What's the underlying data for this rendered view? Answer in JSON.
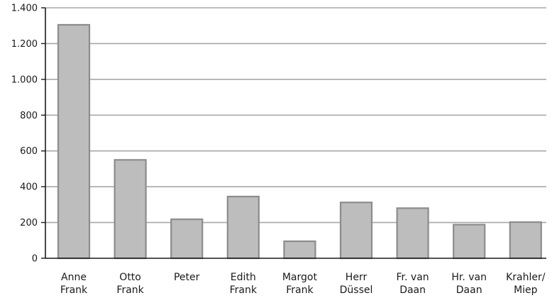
{
  "chart_data": {
    "type": "bar",
    "categories": [
      [
        "Anne",
        "Frank"
      ],
      [
        "Otto",
        "Frank"
      ],
      [
        "Peter"
      ],
      [
        "Edith",
        "Frank"
      ],
      [
        "Margot",
        "Frank"
      ],
      [
        "Herr",
        "Düssel"
      ],
      [
        "Fr. van",
        "Daan"
      ],
      [
        "Hr. van",
        "Daan"
      ],
      [
        "Krahler/",
        "Miep"
      ]
    ],
    "values": [
      1305,
      550,
      218,
      345,
      95,
      312,
      280,
      188,
      202
    ],
    "yticks": [
      0,
      200,
      400,
      600,
      800,
      1000,
      1200,
      1400
    ],
    "ytick_labels": [
      "0",
      "200",
      "400",
      "600",
      "800",
      "1.000",
      "1.200",
      "1.400"
    ],
    "ylim": [
      0,
      1400
    ],
    "grid": true,
    "title": "",
    "xlabel": "",
    "ylabel": "",
    "colors": {
      "bar_fill": "#bdbdbd",
      "bar_stroke": "#8c8c8c",
      "grid": "#a8a8a8",
      "axis": "#1a1a1a"
    }
  }
}
